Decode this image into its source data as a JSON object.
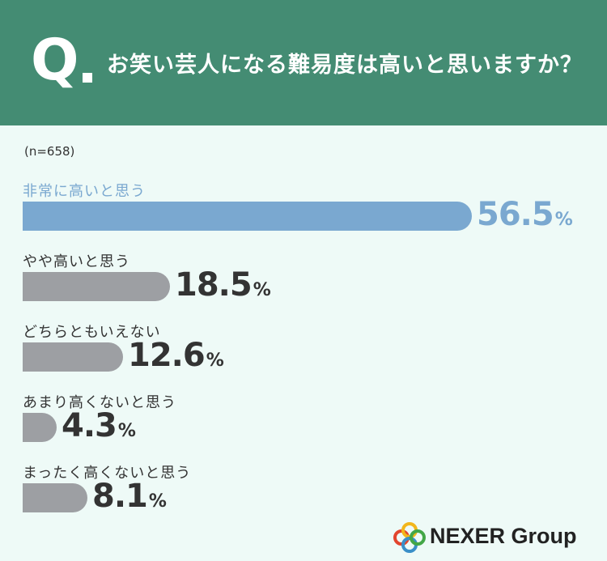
{
  "header": {
    "q_mark": "Q",
    "question": "お笑い芸人になる難易度は高いと思いますか？"
  },
  "sample_note": "(n=658)",
  "colors": {
    "header_bg": "#448c73",
    "highlight_bar": "#7aa8d0",
    "gray_bar": "#9d9fa3",
    "highlight_text": "#7aa8d0",
    "dark_text": "#333333"
  },
  "chart_data": {
    "type": "bar",
    "orientation": "horizontal",
    "categories": [
      "非常に高いと思う",
      "やや高いと思う",
      "どちらともいえない",
      "あまり高くないと思う",
      "まったく高くないと思う"
    ],
    "values": [
      56.5,
      18.5,
      12.6,
      4.3,
      8.1
    ],
    "value_labels": [
      "56.5",
      "18.5",
      "12.6",
      "4.3",
      "8.1"
    ],
    "unit": "%",
    "highlight_index": 0
  },
  "logo": {
    "text": "NEXER Group",
    "ring_colors": [
      "#e2452e",
      "#f2b61b",
      "#3a8fc8",
      "#43a747"
    ]
  }
}
